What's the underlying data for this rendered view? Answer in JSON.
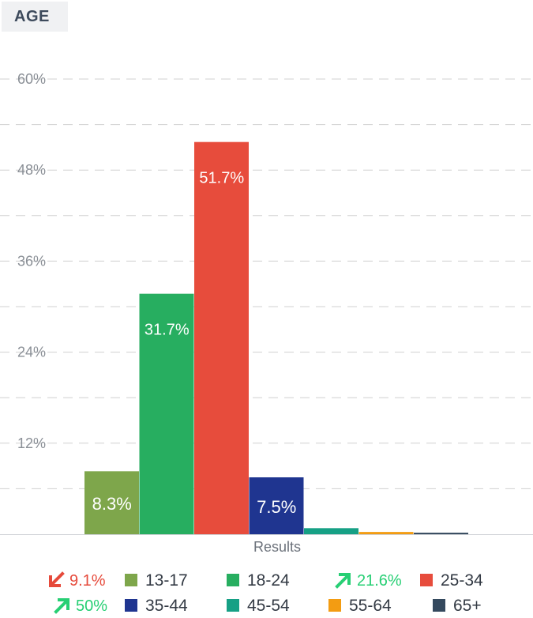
{
  "header": {
    "title": "AGE"
  },
  "colors": {
    "13-17": "#7ea64b",
    "18-24": "#27ae60",
    "25-34": "#e74c3c",
    "35-44": "#1f3590",
    "45-54": "#16a085",
    "55-64": "#f39c12",
    "65+": "#34495e",
    "trend_down": "#e64a3b",
    "trend_up": "#27cf74"
  },
  "chart_data": {
    "type": "bar",
    "xlabel": "Results",
    "ylabel": "",
    "ylim": [
      0,
      60
    ],
    "yticks": [
      "12%",
      "24%",
      "36%",
      "48%",
      "60%"
    ],
    "grid": true,
    "categories": [
      "13-17",
      "18-24",
      "25-34",
      "35-44",
      "45-54",
      "55-64",
      "65+"
    ],
    "values": [
      8.3,
      31.7,
      51.7,
      7.5,
      0.8,
      0.3,
      0.2
    ],
    "data_labels": [
      "8.3%",
      "31.7%",
      "51.7%",
      "7.5%",
      "",
      "",
      ""
    ],
    "legend_placement": "bottom"
  },
  "legend": {
    "trends": {
      "13-17": {
        "direction": "down",
        "text": "9.1%"
      },
      "25-34": {
        "direction": "up",
        "text": "21.6%"
      },
      "35-44": {
        "direction": "up",
        "text": "50%"
      }
    }
  }
}
